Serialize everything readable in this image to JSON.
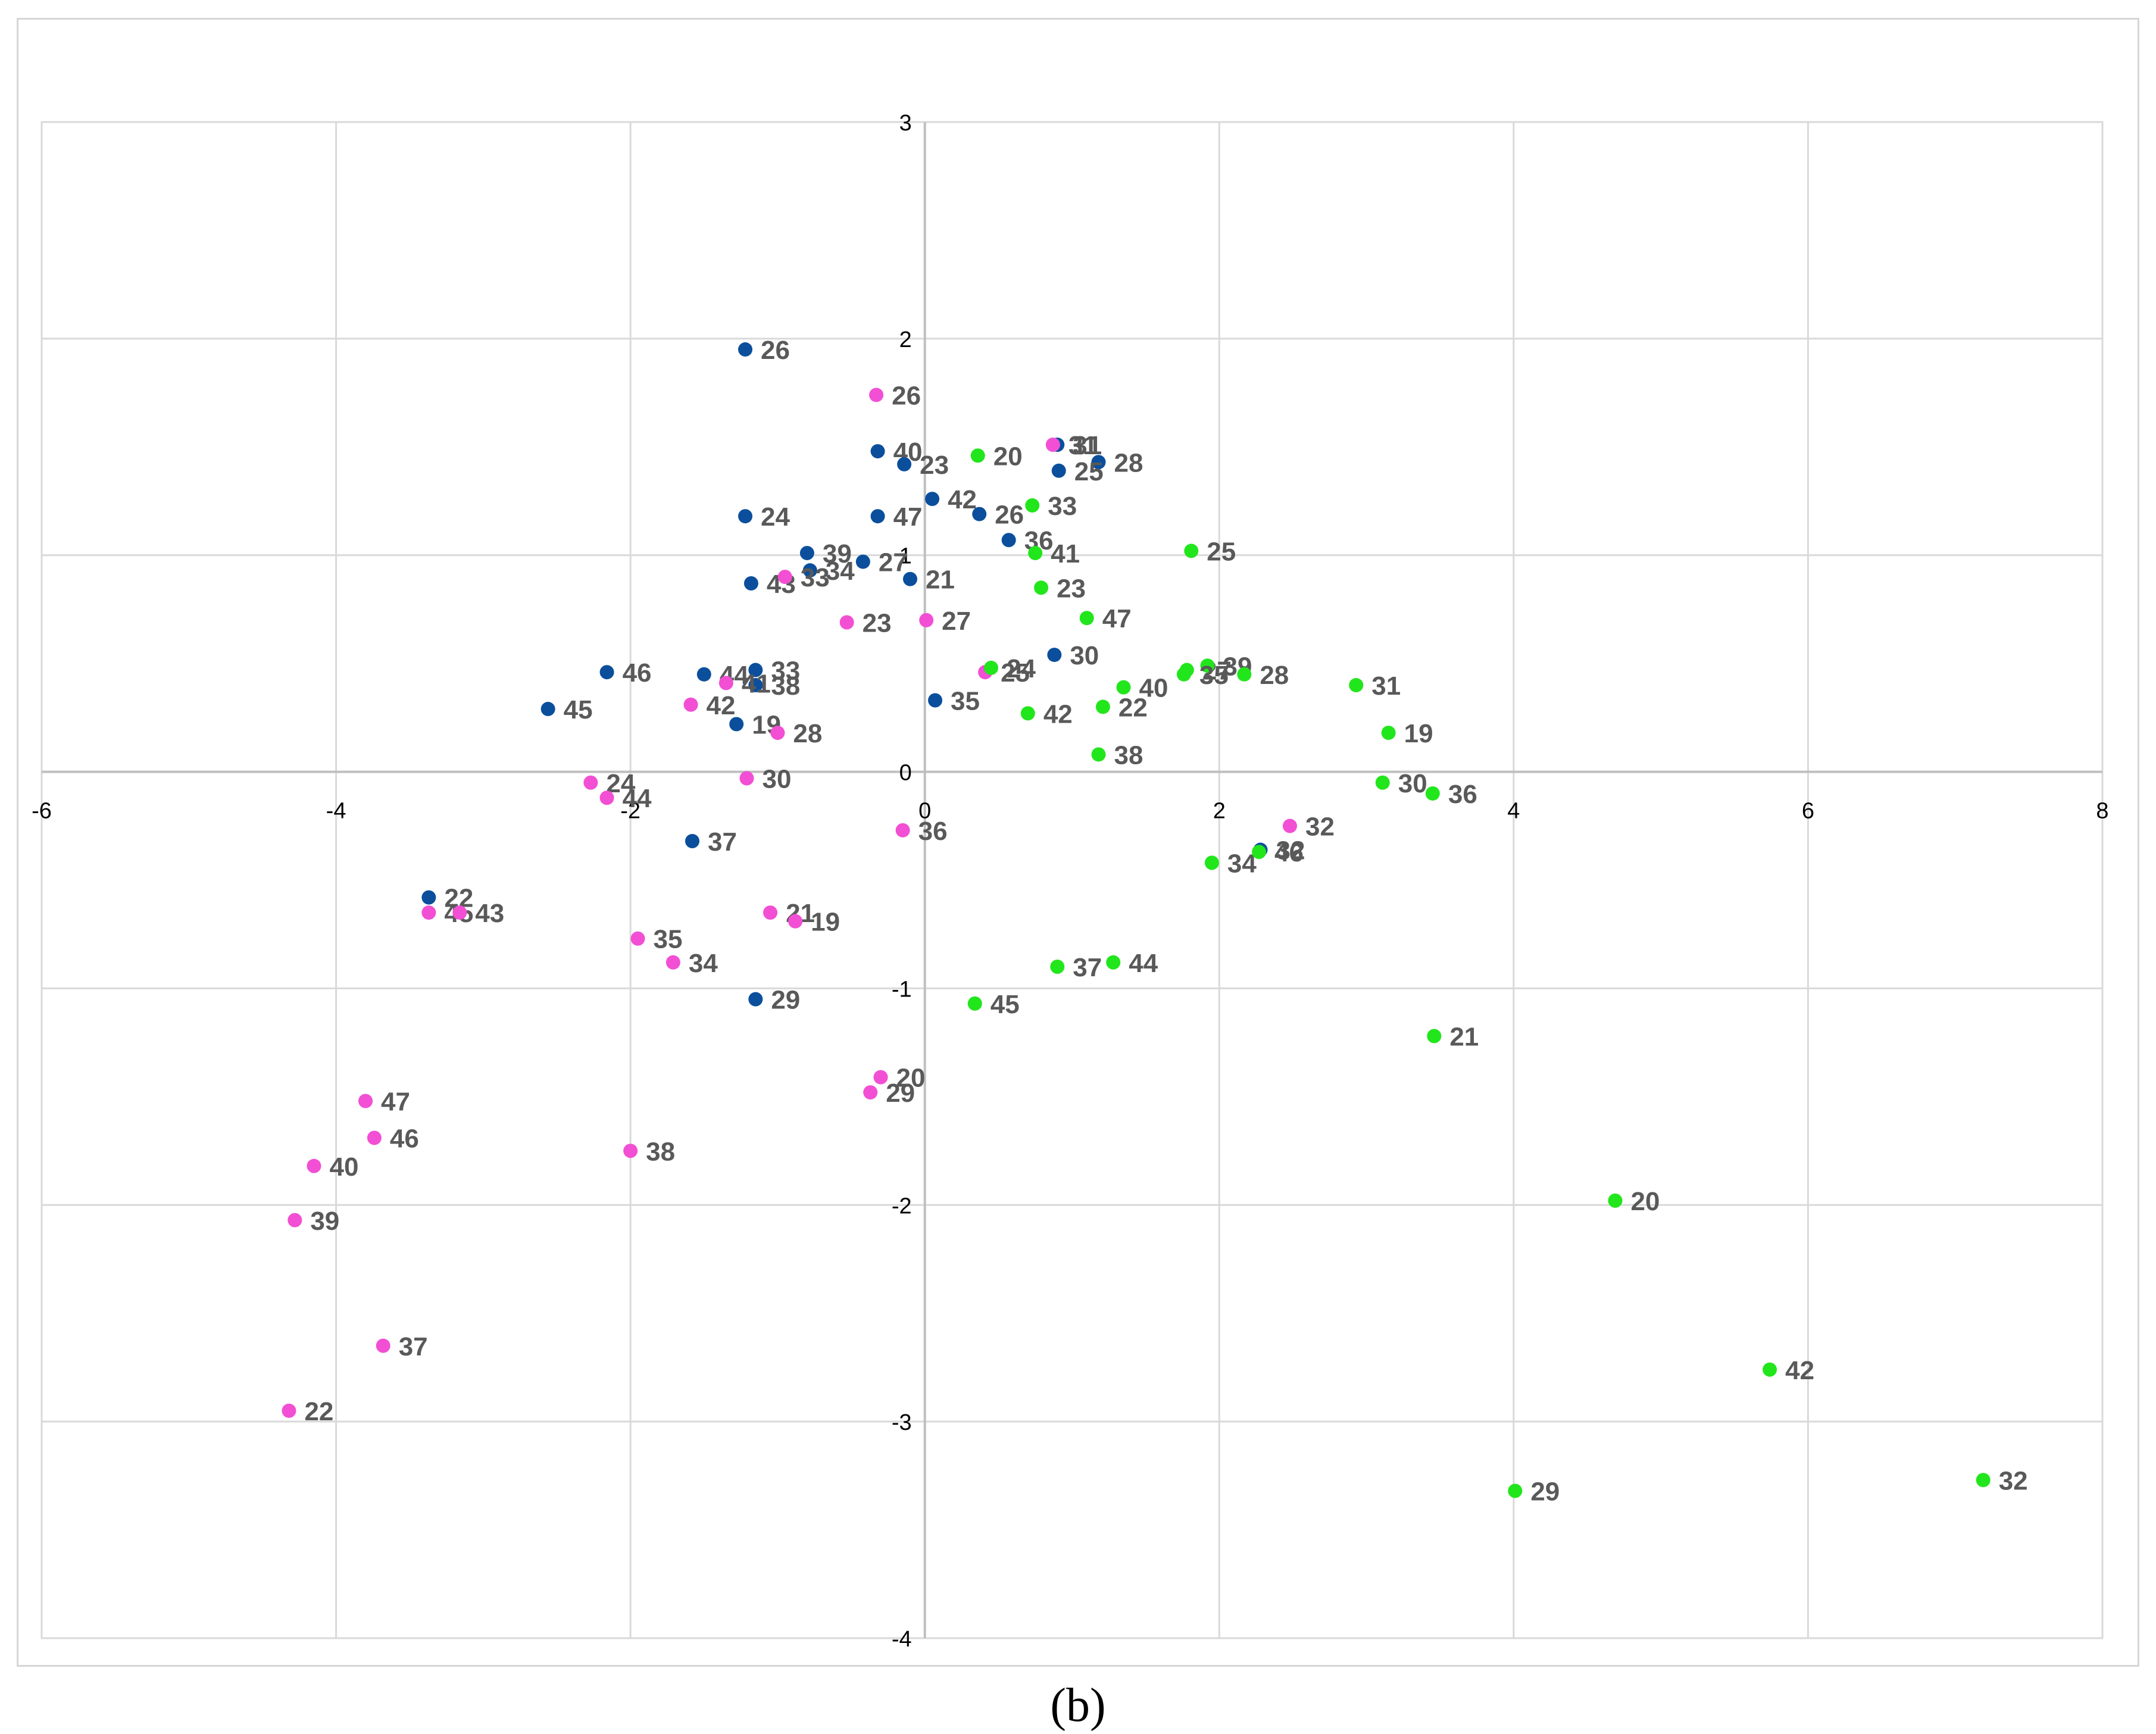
{
  "caption": "(b)",
  "chart_data": {
    "type": "scatter",
    "title": "",
    "xlabel": "",
    "ylabel": "",
    "xlim": [
      -6,
      8
    ],
    "ylim": [
      -4,
      3
    ],
    "xticks": [
      -6,
      -4,
      -2,
      0,
      2,
      4,
      6,
      8
    ],
    "yticks": [
      -4,
      -3,
      -2,
      -1,
      0,
      1,
      2,
      3
    ],
    "grid": true,
    "legend": "none",
    "series": [
      {
        "color": "#0b4f9c",
        "points": [
          {
            "label": "26",
            "x": -1.22,
            "y": 1.95
          },
          {
            "label": "40",
            "x": -0.32,
            "y": 1.48
          },
          {
            "label": "23",
            "x": -0.14,
            "y": 1.42
          },
          {
            "label": "42",
            "x": 0.05,
            "y": 1.26
          },
          {
            "label": "26",
            "x": 0.37,
            "y": 1.19
          },
          {
            "label": "31",
            "x": 0.9,
            "y": 1.51
          },
          {
            "label": "28",
            "x": 1.18,
            "y": 1.43
          },
          {
            "label": "25",
            "x": 0.91,
            "y": 1.39
          },
          {
            "label": "36",
            "x": 0.57,
            "y": 1.07
          },
          {
            "label": "24",
            "x": -1.22,
            "y": 1.18
          },
          {
            "label": "47",
            "x": -0.32,
            "y": 1.18
          },
          {
            "label": "39",
            "x": -0.8,
            "y": 1.01
          },
          {
            "label": "34",
            "x": -0.78,
            "y": 0.93
          },
          {
            "label": "27",
            "x": -0.42,
            "y": 0.97
          },
          {
            "label": "21",
            "x": -0.1,
            "y": 0.89
          },
          {
            "label": "43",
            "x": -1.18,
            "y": 0.87
          },
          {
            "label": "30",
            "x": 0.88,
            "y": 0.54
          },
          {
            "label": "46",
            "x": -2.16,
            "y": 0.46
          },
          {
            "label": "44",
            "x": -1.5,
            "y": 0.45
          },
          {
            "label": "33",
            "x": -1.15,
            "y": 0.47
          },
          {
            "label": "38",
            "x": -1.15,
            "y": 0.4
          },
          {
            "label": "35",
            "x": 0.07,
            "y": 0.33
          },
          {
            "label": "45",
            "x": -2.56,
            "y": 0.29
          },
          {
            "label": "19",
            "x": -1.28,
            "y": 0.22
          },
          {
            "label": "37",
            "x": -1.58,
            "y": -0.32
          },
          {
            "label": "22",
            "x": -3.37,
            "y": -0.58
          },
          {
            "label": "29",
            "x": -1.15,
            "y": -1.05
          },
          {
            "label": "32",
            "x": 2.28,
            "y": -0.36
          }
        ]
      },
      {
        "color": "#f24fd4",
        "points": [
          {
            "label": "26",
            "x": -0.33,
            "y": 1.74
          },
          {
            "label": "31",
            "x": 0.87,
            "y": 1.51
          },
          {
            "label": "33",
            "x": -0.95,
            "y": 0.9
          },
          {
            "label": "23",
            "x": -0.53,
            "y": 0.69
          },
          {
            "label": "27",
            "x": 0.01,
            "y": 0.7
          },
          {
            "label": "25",
            "x": 0.41,
            "y": 0.46
          },
          {
            "label": "41",
            "x": -1.35,
            "y": 0.41
          },
          {
            "label": "42",
            "x": -1.59,
            "y": 0.31
          },
          {
            "label": "28",
            "x": -1.0,
            "y": 0.18
          },
          {
            "label": "30",
            "x": -1.21,
            "y": -0.03
          },
          {
            "label": "24",
            "x": -2.27,
            "y": -0.05
          },
          {
            "label": "44",
            "x": -2.16,
            "y": -0.12
          },
          {
            "label": "36",
            "x": -0.15,
            "y": -0.27
          },
          {
            "label": "32",
            "x": 2.48,
            "y": -0.25
          },
          {
            "label": "45",
            "x": -3.37,
            "y": -0.65
          },
          {
            "label": "43",
            "x": -3.16,
            "y": -0.65
          },
          {
            "label": "21",
            "x": -1.05,
            "y": -0.65
          },
          {
            "label": "19",
            "x": -0.88,
            "y": -0.69
          },
          {
            "label": "35",
            "x": -1.95,
            "y": -0.77
          },
          {
            "label": "34",
            "x": -1.71,
            "y": -0.88
          },
          {
            "label": "20",
            "x": -0.3,
            "y": -1.41
          },
          {
            "label": "29",
            "x": -0.37,
            "y": -1.48
          },
          {
            "label": "47",
            "x": -3.8,
            "y": -1.52
          },
          {
            "label": "46",
            "x": -3.74,
            "y": -1.69
          },
          {
            "label": "38",
            "x": -2.0,
            "y": -1.75
          },
          {
            "label": "40",
            "x": -4.15,
            "y": -1.82
          },
          {
            "label": "39",
            "x": -4.28,
            "y": -2.07
          },
          {
            "label": "37",
            "x": -3.68,
            "y": -2.65
          },
          {
            "label": "22",
            "x": -4.32,
            "y": -2.95
          }
        ]
      },
      {
        "color": "#22e61c",
        "points": [
          {
            "label": "20",
            "x": 0.36,
            "y": 1.46
          },
          {
            "label": "33",
            "x": 0.73,
            "y": 1.23
          },
          {
            "label": "41",
            "x": 0.75,
            "y": 1.01
          },
          {
            "label": "25",
            "x": 1.81,
            "y": 1.02
          },
          {
            "label": "23",
            "x": 0.79,
            "y": 0.85
          },
          {
            "label": "47",
            "x": 1.1,
            "y": 0.71
          },
          {
            "label": "24",
            "x": 0.45,
            "y": 0.48
          },
          {
            "label": "27",
            "x": 1.78,
            "y": 0.47
          },
          {
            "label": "39",
            "x": 1.92,
            "y": 0.49
          },
          {
            "label": "28",
            "x": 2.17,
            "y": 0.45
          },
          {
            "label": "35",
            "x": 1.76,
            "y": 0.45
          },
          {
            "label": "40",
            "x": 1.35,
            "y": 0.39
          },
          {
            "label": "22",
            "x": 1.21,
            "y": 0.3
          },
          {
            "label": "42",
            "x": 0.7,
            "y": 0.27
          },
          {
            "label": "31",
            "x": 2.93,
            "y": 0.4
          },
          {
            "label": "19",
            "x": 3.15,
            "y": 0.18
          },
          {
            "label": "38",
            "x": 1.18,
            "y": 0.08
          },
          {
            "label": "30",
            "x": 3.11,
            "y": -0.05
          },
          {
            "label": "36",
            "x": 3.45,
            "y": -0.1
          },
          {
            "label": "34",
            "x": 1.95,
            "y": -0.42
          },
          {
            "label": "46",
            "x": 2.27,
            "y": -0.37
          },
          {
            "label": "44",
            "x": 1.28,
            "y": -0.88
          },
          {
            "label": "37",
            "x": 0.9,
            "y": -0.9
          },
          {
            "label": "45",
            "x": 0.34,
            "y": -1.07
          },
          {
            "label": "21",
            "x": 3.46,
            "y": -1.22
          },
          {
            "label": "20",
            "x": 4.69,
            "y": -1.98
          },
          {
            "label": "42",
            "x": 5.74,
            "y": -2.76
          },
          {
            "label": "32",
            "x": 7.19,
            "y": -3.27
          },
          {
            "label": "29",
            "x": 4.01,
            "y": -3.32
          }
        ]
      }
    ]
  }
}
